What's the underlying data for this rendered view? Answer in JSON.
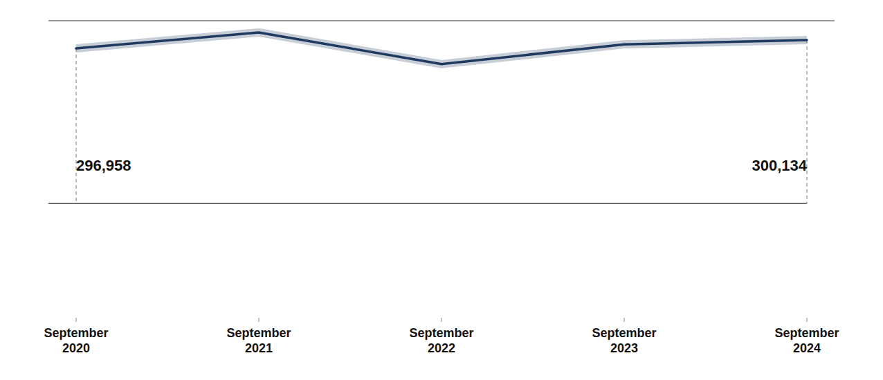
{
  "chart_data": {
    "type": "line",
    "categories": [
      "September\n2020",
      "September\n2021",
      "September\n2022",
      "September\n2023",
      "September\n2024"
    ],
    "values": [
      296958,
      303000,
      291000,
      298500,
      300134
    ],
    "color": "#1e3a5f",
    "ylim": [
      195000,
      309000
    ],
    "tick_labels": "x",
    "grid": false,
    "annotations": [
      "296,958",
      "300,134"
    ]
  }
}
